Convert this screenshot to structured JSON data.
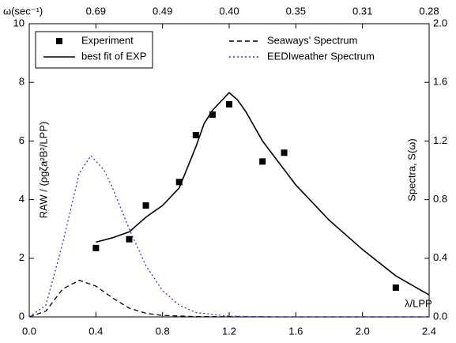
{
  "chart_data": {
    "type": "line",
    "x_label": "λ/LPP",
    "y_label": "RAW / (ρgζa²B²/LPP)",
    "y2_label": "Spectra, S(ω)",
    "x2_label": "ω(sec⁻¹)",
    "xlim": [
      0,
      2.4
    ],
    "xticks": [
      {
        "value": 0,
        "label": "0.0"
      },
      0.4,
      0.8,
      1.2,
      1.6,
      {
        "value": 2,
        "label": "2.0"
      },
      2.4
    ],
    "x2ticks": [
      0.69,
      0.49,
      {
        "value": 0.4,
        "label": "0.40"
      },
      0.35,
      0.31,
      0.28
    ],
    "ylim": [
      0,
      10
    ],
    "yticks": [
      0,
      2,
      4,
      6,
      8,
      10
    ],
    "y2lim": [
      0,
      2
    ],
    "y2ticks": [
      {
        "value": 0,
        "label": "0.0"
      },
      0.4,
      0.8,
      1.2,
      1.6,
      {
        "value": 2,
        "label": "2.0"
      }
    ],
    "series": [
      {
        "name": "Experiment",
        "color": "#000000",
        "style": "markers",
        "x": [
          0.4,
          0.6,
          0.7,
          0.9,
          1.0,
          1.1,
          1.2,
          1.4,
          1.53,
          2.2
        ],
        "values": [
          2.35,
          2.65,
          3.8,
          4.6,
          6.2,
          6.9,
          7.25,
          5.3,
          5.6,
          1.0
        ]
      },
      {
        "name": "best fit of EXP",
        "color": "#000000",
        "style": "solid",
        "x": [
          0.4,
          0.5,
          0.6,
          0.7,
          0.8,
          0.9,
          1.0,
          1.05,
          1.1,
          1.2,
          1.25,
          1.3,
          1.4,
          1.6,
          1.8,
          2.0,
          2.2,
          2.4
        ],
        "values": [
          2.55,
          2.7,
          2.9,
          3.4,
          3.8,
          4.4,
          5.8,
          6.6,
          7.05,
          7.65,
          7.4,
          7.0,
          6.0,
          4.5,
          3.3,
          2.3,
          1.4,
          0.75
        ]
      },
      {
        "name": "Seaways' Spectrum",
        "color": "#000000",
        "style": "dashed",
        "axis": "y2",
        "x": [
          0,
          0.1,
          0.2,
          0.3,
          0.4,
          0.5,
          0.6,
          0.7,
          0.8,
          1.0,
          1.5,
          2.4
        ],
        "values": [
          0,
          0.04,
          0.19,
          0.25,
          0.21,
          0.13,
          0.06,
          0.025,
          0.01,
          0.002,
          0,
          0
        ]
      },
      {
        "name": "EEDIweather Spectrum",
        "color": "#3333cc",
        "style": "dotted",
        "axis": "y2",
        "x": [
          0,
          0.1,
          0.2,
          0.3,
          0.37,
          0.45,
          0.5,
          0.6,
          0.7,
          0.8,
          0.9,
          1.0,
          1.2,
          1.5,
          2.4
        ],
        "values": [
          0,
          0.08,
          0.5,
          0.98,
          1.1,
          1.0,
          0.88,
          0.6,
          0.35,
          0.18,
          0.08,
          0.03,
          0.005,
          0,
          0
        ]
      }
    ]
  }
}
